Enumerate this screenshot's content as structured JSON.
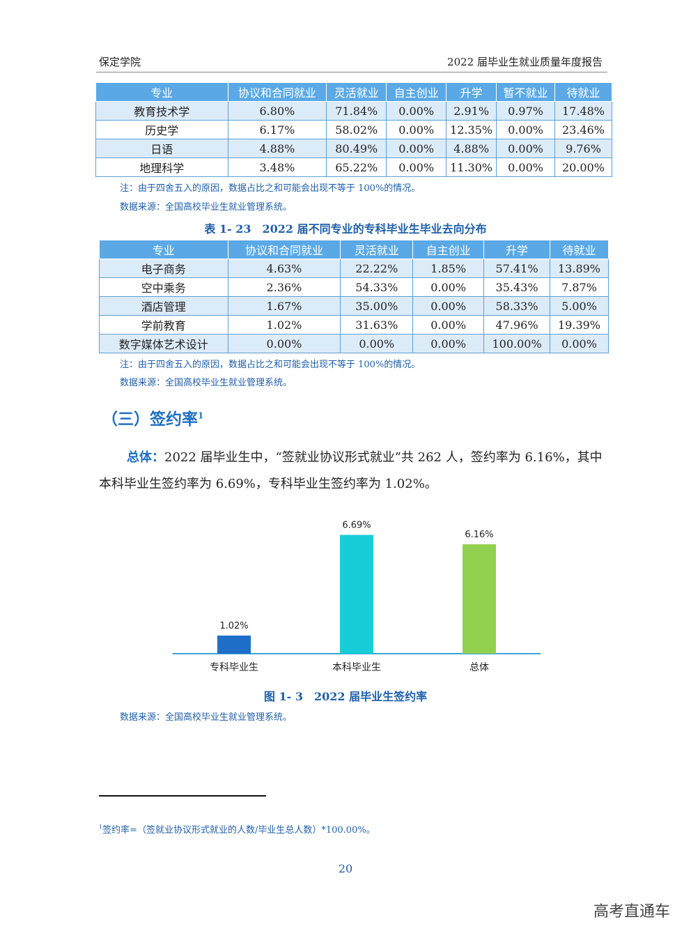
{
  "header": {
    "left": "保定学院",
    "right": "2022 届毕业生就业质量年度报告"
  },
  "table1": {
    "columns": [
      "专业",
      "协议和合同就业",
      "灵活就业",
      "自主创业",
      "升学",
      "暂不就业",
      "待就业"
    ],
    "rows": [
      [
        "教育技术学",
        "6.80%",
        "71.84%",
        "0.00%",
        "2.91%",
        "0.97%",
        "17.48%"
      ],
      [
        "历史学",
        "6.17%",
        "58.02%",
        "0.00%",
        "12.35%",
        "0.00%",
        "23.46%"
      ],
      [
        "日语",
        "4.88%",
        "80.49%",
        "0.00%",
        "4.88%",
        "0.00%",
        "9.76%"
      ],
      [
        "地理科学",
        "3.48%",
        "65.22%",
        "0.00%",
        "11.30%",
        "0.00%",
        "20.00%"
      ]
    ],
    "note": "注：由于四舍五入的原因，数据占比之和可能会出现不等于 100%的情况。",
    "source": "数据来源：全国高校毕业生就业管理系统。"
  },
  "table2": {
    "caption": "表 1- 23　2022 届不同专业的专科毕业生毕业去向分布",
    "columns": [
      "专业",
      "协议和合同就业",
      "灵活就业",
      "自主创业",
      "升学",
      "待就业"
    ],
    "rows": [
      [
        "电子商务",
        "4.63%",
        "22.22%",
        "1.85%",
        "57.41%",
        "13.89%"
      ],
      [
        "空中乘务",
        "2.36%",
        "54.33%",
        "0.00%",
        "35.43%",
        "7.87%"
      ],
      [
        "酒店管理",
        "1.67%",
        "35.00%",
        "0.00%",
        "58.33%",
        "5.00%"
      ],
      [
        "学前教育",
        "1.02%",
        "31.63%",
        "0.00%",
        "47.96%",
        "19.39%"
      ],
      [
        "数字媒体艺术设计",
        "0.00%",
        "0.00%",
        "0.00%",
        "100.00%",
        "0.00%"
      ]
    ],
    "note": "注：由于四舍五入的原因，数据占比之和可能会出现不等于 100%的情况。",
    "source": "数据来源：全国高校毕业生就业管理系统。"
  },
  "section": {
    "title": "（三）签约率",
    "footnote_mark": "1"
  },
  "paragraph": {
    "lead": "总体：",
    "text": "2022 届毕业生中，“签就业协议形式就业”共 262 人，签约率为 6.16%，其中本科毕业生签约率为 6.69%，专科毕业生签约率为 1.02%。"
  },
  "chart_data": {
    "type": "bar",
    "categories": [
      "专科毕业生",
      "本科毕业生",
      "总体"
    ],
    "values": [
      1.02,
      6.69,
      6.16
    ],
    "data_labels": [
      "1.02%",
      "6.69%",
      "6.16%"
    ],
    "colors": [
      "#1f6fc9",
      "#19cdd8",
      "#92d050"
    ],
    "ylim": [
      0,
      7.3
    ],
    "grid": false,
    "legend": "none"
  },
  "figure": {
    "caption": "图 1- 3　2022 届毕业生签约率",
    "source": "数据来源：全国高校毕业生就业管理系统。"
  },
  "footnote": {
    "mark": "1",
    "text": "签约率=（签就业协议形式就业的人数/毕业生总人数）*100.00%。"
  },
  "page_number": "20",
  "watermark": "高考直通车"
}
